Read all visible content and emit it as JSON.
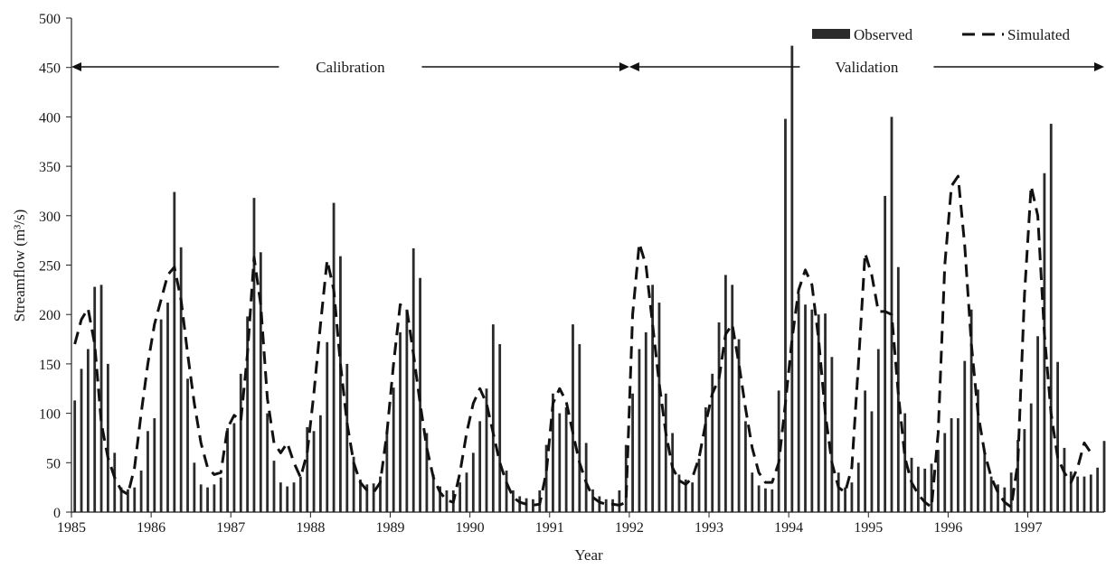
{
  "chart_data": {
    "type": "bar",
    "xlabel": "Year",
    "ylabel": "Streamflow (m³/s)",
    "ylim": [
      0,
      500
    ],
    "yticks": [
      0,
      50,
      100,
      150,
      200,
      250,
      300,
      350,
      400,
      450,
      500
    ],
    "year_labels": [
      "1985",
      "1986",
      "1987",
      "1988",
      "1989",
      "1990",
      "1991",
      "1992",
      "1993",
      "1994",
      "1995",
      "1996",
      "1997"
    ],
    "x_unit": "month index (0 = Jan 1985)",
    "xlim": [
      0,
      155.5
    ],
    "grid": false,
    "legend": {
      "position": "top-right",
      "entries": [
        {
          "label": "Observed",
          "style": "bar"
        },
        {
          "label": "Simulated",
          "style": "dashed-line"
        }
      ]
    },
    "annotations": [
      {
        "text": "Calibration",
        "from": 0,
        "to": 84
      },
      {
        "text": "Validation",
        "from": 84,
        "to": 155.5
      }
    ],
    "series": [
      {
        "name": "Observed",
        "type": "bar",
        "values": [
          113,
          145,
          165,
          228,
          230,
          150,
          60,
          25,
          23,
          25,
          42,
          82,
          95,
          195,
          212,
          324,
          268,
          135,
          50,
          28,
          25,
          28,
          35,
          85,
          90,
          140,
          198,
          318,
          263,
          100,
          52,
          30,
          26,
          30,
          36,
          86,
          82,
          98,
          172,
          313,
          259,
          150,
          56,
          33,
          28,
          29,
          36,
          82,
          126,
          182,
          205,
          267,
          237,
          80,
          38,
          26,
          22,
          22,
          30,
          40,
          60,
          92,
          125,
          190,
          170,
          42,
          22,
          16,
          14,
          13,
          22,
          68,
          120,
          100,
          106,
          190,
          170,
          70,
          23,
          16,
          13,
          13,
          22,
          68,
          120,
          165,
          182,
          230,
          212,
          120,
          80,
          38,
          33,
          30,
          54,
          106,
          140,
          192,
          240,
          230,
          175,
          92,
          40,
          27,
          24,
          23,
          123,
          398,
          472,
          221,
          210,
          205,
          200,
          201,
          157,
          40,
          25,
          30,
          50,
          123,
          102,
          165,
          320,
          400,
          248,
          100,
          55,
          46,
          44,
          49,
          63,
          80,
          95,
          95,
          153,
          205,
          124,
          60,
          36,
          28,
          25,
          40,
          73,
          84,
          110,
          178,
          343,
          393,
          152,
          65,
          41,
          36,
          36,
          38,
          45,
          72
        ]
      },
      {
        "name": "Simulated",
        "type": "line",
        "style": "dashed",
        "points": [
          [
            0,
            170
          ],
          [
            1,
            195
          ],
          [
            2,
            206
          ],
          [
            3,
            170
          ],
          [
            4,
            90
          ],
          [
            5,
            55
          ],
          [
            6,
            35
          ],
          [
            7,
            22
          ],
          [
            8,
            18
          ],
          [
            9,
            45
          ],
          [
            10,
            100
          ],
          [
            11,
            150
          ],
          [
            12,
            190
          ],
          [
            13,
            215
          ],
          [
            14,
            240
          ],
          [
            15,
            248
          ],
          [
            16,
            215
          ],
          [
            17,
            160
          ],
          [
            18,
            110
          ],
          [
            19,
            70
          ],
          [
            20,
            45
          ],
          [
            21,
            38
          ],
          [
            22,
            40
          ],
          [
            23,
            85
          ],
          [
            24,
            98
          ],
          [
            25,
            92
          ],
          [
            26,
            160
          ],
          [
            27,
            258
          ],
          [
            28,
            210
          ],
          [
            29,
            115
          ],
          [
            30,
            70
          ],
          [
            31,
            60
          ],
          [
            32,
            70
          ],
          [
            33,
            50
          ],
          [
            34,
            35
          ],
          [
            35,
            60
          ],
          [
            36,
            120
          ],
          [
            37,
            190
          ],
          [
            38,
            255
          ],
          [
            39,
            225
          ],
          [
            40,
            150
          ],
          [
            41,
            90
          ],
          [
            42,
            50
          ],
          [
            43,
            30
          ],
          [
            44,
            22
          ],
          [
            45,
            20
          ],
          [
            46,
            30
          ],
          [
            47,
            80
          ],
          [
            48,
            150
          ],
          [
            49,
            210
          ],
          [
            50,
            205
          ],
          [
            51,
            160
          ],
          [
            52,
            110
          ],
          [
            53,
            65
          ],
          [
            54,
            35
          ],
          [
            55,
            20
          ],
          [
            56,
            12
          ],
          [
            57,
            10
          ],
          [
            58,
            40
          ],
          [
            59,
            80
          ],
          [
            60,
            110
          ],
          [
            61,
            125
          ],
          [
            62,
            110
          ],
          [
            63,
            80
          ],
          [
            64,
            50
          ],
          [
            65,
            30
          ],
          [
            66,
            15
          ],
          [
            67,
            10
          ],
          [
            68,
            8
          ],
          [
            69,
            7
          ],
          [
            70,
            8
          ],
          [
            71,
            40
          ],
          [
            72,
            110
          ],
          [
            73,
            125
          ],
          [
            74,
            112
          ],
          [
            75,
            80
          ],
          [
            76,
            50
          ],
          [
            77,
            30
          ],
          [
            78,
            15
          ],
          [
            79,
            10
          ],
          [
            80,
            8
          ],
          [
            81,
            8
          ],
          [
            82,
            7
          ],
          [
            83,
            10
          ],
          [
            84,
            200
          ],
          [
            85,
            272
          ],
          [
            86,
            250
          ],
          [
            87,
            190
          ],
          [
            88,
            130
          ],
          [
            89,
            80
          ],
          [
            90,
            45
          ],
          [
            91,
            32
          ],
          [
            92,
            28
          ],
          [
            93,
            35
          ],
          [
            94,
            55
          ],
          [
            95,
            90
          ],
          [
            96,
            120
          ],
          [
            97,
            135
          ],
          [
            98,
            180
          ],
          [
            99,
            190
          ],
          [
            100,
            150
          ],
          [
            101,
            105
          ],
          [
            102,
            65
          ],
          [
            103,
            40
          ],
          [
            104,
            30
          ],
          [
            105,
            30
          ],
          [
            106,
            50
          ],
          [
            107,
            110
          ],
          [
            108,
            175
          ],
          [
            109,
            225
          ],
          [
            110,
            245
          ],
          [
            111,
            230
          ],
          [
            112,
            175
          ],
          [
            113,
            100
          ],
          [
            114,
            50
          ],
          [
            115,
            25
          ],
          [
            116,
            20
          ],
          [
            117,
            45
          ],
          [
            118,
            150
          ],
          [
            119,
            262
          ],
          [
            120,
            240
          ],
          [
            121,
            203
          ],
          [
            122,
            203
          ],
          [
            123,
            200
          ],
          [
            124,
            120
          ],
          [
            125,
            55
          ],
          [
            126,
            30
          ],
          [
            127,
            18
          ],
          [
            128,
            10
          ],
          [
            129,
            5
          ],
          [
            130,
            80
          ],
          [
            131,
            250
          ],
          [
            132,
            330
          ],
          [
            133,
            340
          ],
          [
            134,
            270
          ],
          [
            135,
            170
          ],
          [
            136,
            100
          ],
          [
            137,
            60
          ],
          [
            138,
            35
          ],
          [
            139,
            20
          ],
          [
            140,
            10
          ],
          [
            141,
            5
          ],
          [
            142,
            50
          ],
          [
            143,
            220
          ],
          [
            144,
            330
          ],
          [
            145,
            300
          ],
          [
            146,
            180
          ],
          [
            147,
            100
          ],
          [
            148,
            55
          ],
          [
            149,
            40
          ],
          [
            150,
            30
          ],
          [
            151,
            45
          ],
          [
            152,
            70
          ],
          [
            153,
            60
          ]
        ]
      }
    ]
  }
}
